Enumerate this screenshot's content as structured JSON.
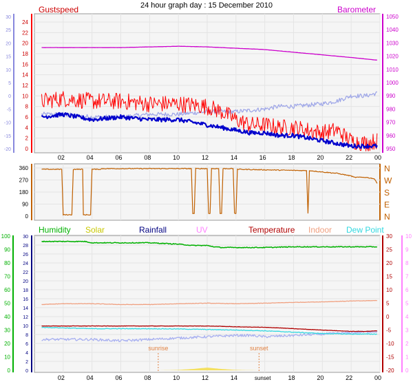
{
  "title": "24 hour graph day : 15 December 2010",
  "colors": {
    "gust": "#ff0000",
    "wind": "#0000cc",
    "temp_top": "#a0a8e8",
    "barometer": "#cc00cc",
    "direction": "#c06000",
    "humidity": "#00b000",
    "solar": "#c8c800",
    "rainfall": "#000080",
    "uv": "#ff80ff",
    "temperature": "#b00000",
    "indoor": "#f0a080",
    "dewpoint": "#30d8e0",
    "left_axis_top": "#8888dd",
    "left_axis_green": "#00b000",
    "plot_bg": "#f5f5f5",
    "grid": "#e4e4e4"
  },
  "chart_data": [
    {
      "type": "line",
      "panel": "wind-barometer",
      "legend": [
        "Gustspeed",
        "Barometer"
      ],
      "x_ticks": [
        "02",
        "04",
        "06",
        "08",
        "10",
        "12",
        "14",
        "16",
        "18",
        "20",
        "22",
        "00"
      ],
      "left_outer_ticks": [
        "30",
        "25",
        "20",
        "15",
        "10",
        "5",
        "0",
        "-5",
        "-10",
        "-15",
        "-20"
      ],
      "left_inner_ticks": [
        "24",
        "22",
        "20",
        "18",
        "16",
        "14",
        "12",
        "10",
        "8",
        "6",
        "4",
        "2",
        "0"
      ],
      "right_ticks": [
        "1050",
        "1040",
        "1030",
        "1020",
        "1010",
        "1000",
        "990",
        "980",
        "970",
        "960",
        "950"
      ],
      "left_inner_ylim": [
        0,
        25
      ],
      "left_outer_ylim": [
        -20,
        30
      ],
      "right_ylim": [
        945,
        1050
      ],
      "series": [
        {
          "name": "Gustspeed",
          "axis": "left_inner",
          "x": [
            0.5,
            2,
            4,
            6,
            8,
            10,
            12,
            13,
            14,
            15,
            16,
            17,
            18,
            19,
            20,
            21,
            22,
            23,
            23.8
          ],
          "y": [
            9.0,
            9.5,
            9.0,
            9.0,
            8.5,
            8.5,
            8.0,
            7.0,
            5.5,
            4.5,
            4.5,
            4.0,
            4.0,
            3.5,
            3.0,
            3.5,
            1.5,
            1.0,
            1.5
          ]
        },
        {
          "name": "",
          "axis": "left_inner",
          "x": [
            0.5,
            2,
            4,
            6,
            8,
            10,
            11,
            12,
            13,
            14,
            15,
            16,
            17,
            18,
            19,
            20,
            21,
            22,
            23,
            23.8
          ],
          "y": [
            6.0,
            6.5,
            5.5,
            6.0,
            5.5,
            5.5,
            5.0,
            4.5,
            4.0,
            3.5,
            3.0,
            3.0,
            2.5,
            2.5,
            2.0,
            1.5,
            1.0,
            0.5,
            0.5,
            0.5
          ]
        },
        {
          "name": "",
          "axis": "left_outer",
          "x": [
            0.5,
            2,
            4,
            6,
            8,
            10,
            12,
            14,
            16,
            17,
            18,
            20,
            21,
            22,
            23,
            23.8
          ],
          "y": [
            -7,
            -7,
            -8,
            -8,
            -7,
            -7,
            -6,
            -6,
            -5,
            -4,
            -4,
            -3,
            -2,
            0,
            0,
            1
          ]
        },
        {
          "name": "Barometer",
          "axis": "right",
          "x": [
            0.5,
            2,
            4,
            6,
            8,
            10,
            12,
            14,
            16,
            18,
            20,
            22,
            23.8
          ],
          "y": [
            1026.5,
            1026.5,
            1026.5,
            1026.5,
            1027,
            1027.5,
            1027,
            1026,
            1025,
            1023,
            1021,
            1019,
            1017
          ]
        }
      ]
    },
    {
      "type": "line",
      "panel": "wind-direction",
      "x_ticks": [
        "02",
        "04",
        "06",
        "08",
        "10",
        "12",
        "14",
        "16",
        "18",
        "20",
        "22",
        "00"
      ],
      "left_ticks": [
        "360",
        "270",
        "180",
        "90",
        "0"
      ],
      "right_labels": [
        "N",
        "W",
        "S",
        "E",
        "N"
      ],
      "ylim": [
        0,
        360
      ],
      "series": [
        {
          "name": "",
          "x": [
            0.5,
            1.9,
            2.0,
            2.6,
            2.7,
            3.35,
            3.4,
            3.9,
            4.0,
            4.6,
            4.7,
            10.9,
            11.0,
            11.1,
            11.2,
            12.0,
            12.1,
            12.2,
            12.3,
            12.8,
            12.9,
            13.0,
            13.1,
            13.8,
            13.9,
            14.0,
            14.1,
            18.9,
            19.0,
            19.1,
            20.0,
            21.0,
            22.0,
            22.2,
            23.0,
            23.6,
            23.8
          ],
          "y": [
            350,
            350,
            10,
            10,
            350,
            350,
            10,
            10,
            350,
            350,
            355,
            355,
            20,
            20,
            355,
            355,
            20,
            20,
            355,
            355,
            20,
            20,
            355,
            355,
            20,
            20,
            350,
            340,
            20,
            340,
            330,
            320,
            300,
            290,
            290,
            280,
            245
          ]
        }
      ]
    },
    {
      "type": "line",
      "panel": "humidity-temperature",
      "legend": [
        "Humidity",
        "Solar",
        "Rainfall",
        "UV",
        "Temperature",
        "Indoor",
        "Dew Point"
      ],
      "x_ticks": [
        "02",
        "04",
        "06",
        "08",
        "10",
        "12",
        "14",
        "sunset",
        "18",
        "20",
        "22",
        "00"
      ],
      "left_outer_ticks": [
        "100",
        "90",
        "80",
        "70",
        "60",
        "50",
        "40",
        "30",
        "20",
        "10",
        "0"
      ],
      "left_inner_ticks": [
        "30",
        "28",
        "26",
        "24",
        "22",
        "20",
        "18",
        "16",
        "14",
        "12",
        "10",
        "8",
        "6",
        "4",
        "2",
        "0"
      ],
      "right_outer_ticks": [
        "10",
        "9",
        "8",
        "7",
        "6",
        "5",
        "4",
        "3",
        "2",
        "1",
        "0"
      ],
      "right_inner_ticks": [
        "30",
        "25",
        "20",
        "15",
        "10",
        "5",
        "0",
        "-5",
        "-10",
        "-15",
        "-20"
      ],
      "left_outer_ylim": [
        0,
        100
      ],
      "right_inner_ylim": [
        -20,
        30
      ],
      "annotations": [
        {
          "text": "sunrise",
          "x": 8.6
        },
        {
          "text": "sunset",
          "x": 15.6
        }
      ],
      "series": [
        {
          "name": "Humidity",
          "axis": "left_outer",
          "x": [
            0.5,
            2,
            3.5,
            4,
            6,
            8,
            10,
            11,
            12,
            12.5,
            13,
            16,
            18,
            20,
            22,
            23.8
          ],
          "y": [
            96,
            96,
            96,
            95,
            95,
            95,
            94,
            93,
            93,
            92,
            91.5,
            91.5,
            92,
            92,
            92,
            92
          ]
        },
        {
          "name": "Indoor",
          "axis": "right_inner",
          "x": [
            0.5,
            2,
            4,
            6,
            8,
            10,
            12,
            14,
            16,
            18,
            20,
            22,
            23.8
          ],
          "y": [
            4.5,
            4.8,
            4.8,
            4.5,
            4.5,
            4.8,
            5.0,
            4.8,
            5.0,
            5.3,
            5.5,
            5.8,
            6.0
          ]
        },
        {
          "name": "Temperature",
          "axis": "right_inner",
          "x": [
            0.5,
            2,
            4,
            6,
            8,
            10,
            12,
            14,
            16,
            17,
            18,
            20,
            22,
            23,
            23.8
          ],
          "y": [
            -3.5,
            -3.5,
            -3.5,
            -3.5,
            -3.5,
            -3.5,
            -3.5,
            -3.8,
            -4.0,
            -4.2,
            -4.5,
            -5.0,
            -5.5,
            -5.5,
            -5.3
          ]
        },
        {
          "name": "Dew Point",
          "axis": "right_inner",
          "x": [
            0.5,
            2,
            4,
            6,
            8,
            10,
            12,
            14,
            16,
            18,
            20,
            22,
            23.8
          ],
          "y": [
            -4.0,
            -4.2,
            -4.5,
            -4.5,
            -4.5,
            -4.6,
            -4.8,
            -5.0,
            -5.3,
            -5.8,
            -6.3,
            -6.5,
            -6.5
          ]
        },
        {
          "name": "",
          "axis": "right_inner",
          "x": [
            0.5,
            2,
            4,
            6,
            8,
            10,
            12,
            14,
            15,
            16,
            18,
            20,
            22,
            23.8
          ],
          "y": [
            -8.5,
            -8.5,
            -8.5,
            -9.0,
            -8.5,
            -8.0,
            -7.5,
            -7.0,
            -7.0,
            -7.5,
            -7.0,
            -6.5,
            -6.0,
            -5.5
          ]
        },
        {
          "name": "Solar",
          "axis": "left_outer",
          "x": [
            8.6,
            10,
            11,
            12,
            13,
            14,
            15.6
          ],
          "y": [
            0,
            0.3,
            1.0,
            2.0,
            1.0,
            0.3,
            0
          ]
        }
      ]
    }
  ]
}
